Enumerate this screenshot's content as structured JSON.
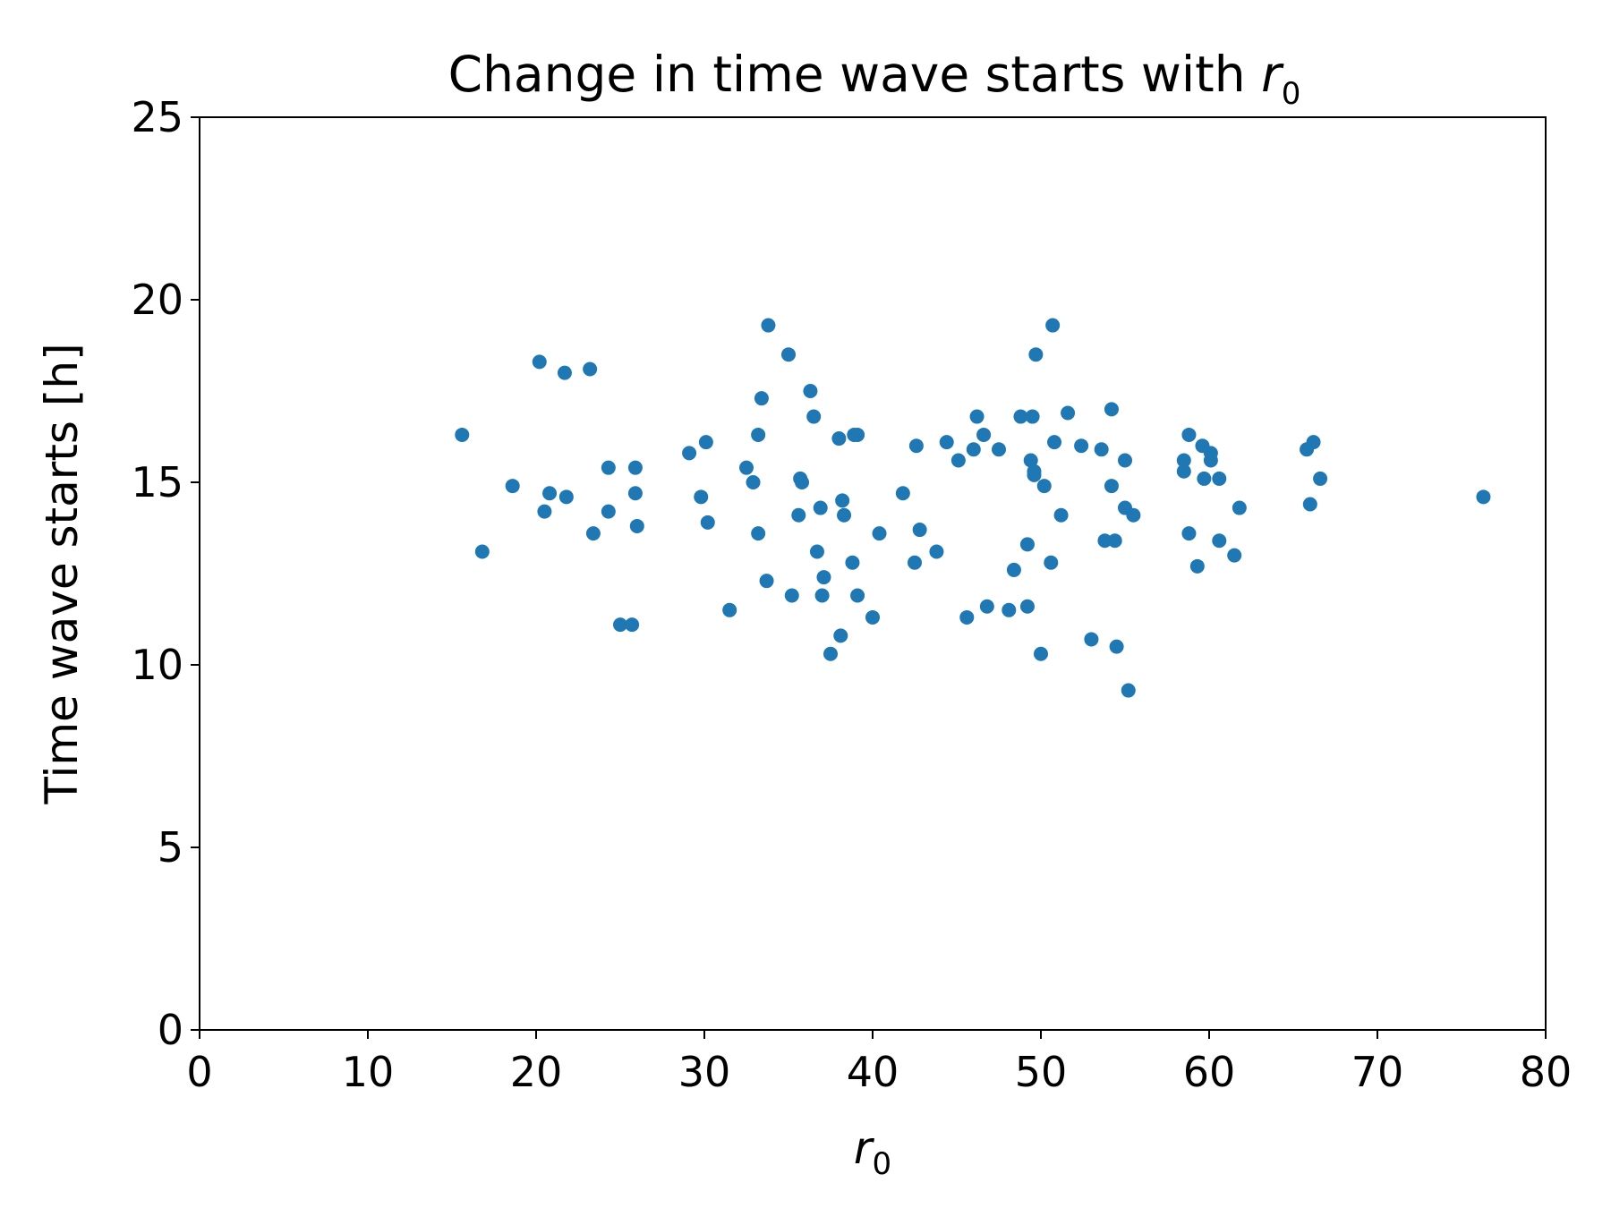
{
  "chart_data": {
    "type": "scatter",
    "title": "Change in time wave starts with ",
    "title_symbol": "r",
    "title_subscript": "0",
    "xlabel_symbol": "r",
    "xlabel_subscript": "0",
    "ylabel": "Time wave starts [h]",
    "xlim": [
      0,
      80
    ],
    "ylim": [
      0,
      25
    ],
    "xticks": [
      "0",
      "10",
      "20",
      "30",
      "40",
      "50",
      "60",
      "70",
      "80"
    ],
    "yticks": [
      "0",
      "5",
      "10",
      "15",
      "20",
      "25"
    ],
    "grid": false,
    "color": "#1f77b4",
    "series": [
      {
        "x": [
          15.6,
          16.8,
          18.6,
          20.2,
          20.5,
          20.8,
          21.7,
          21.8,
          23.2,
          23.4,
          24.3,
          24.3,
          25.0,
          25.7,
          25.9,
          25.9,
          26.0,
          29.1,
          29.8,
          30.1,
          30.2,
          31.5,
          32.5,
          32.9,
          33.2,
          33.2,
          33.4,
          33.7,
          33.8,
          35.0,
          35.2,
          35.6,
          35.7,
          35.8,
          36.3,
          36.5,
          36.7,
          36.9,
          37.0,
          37.1,
          37.5,
          38.0,
          38.1,
          38.2,
          38.3,
          38.8,
          38.9,
          39.1,
          39.1,
          40.0,
          40.4,
          41.8,
          42.5,
          42.6,
          42.8,
          43.8,
          44.4,
          45.1,
          45.6,
          46.0,
          46.2,
          46.6,
          46.8,
          47.5,
          48.1,
          48.4,
          48.8,
          49.2,
          49.2,
          49.5,
          49.4,
          49.6,
          49.6,
          49.7,
          50.0,
          50.2,
          50.6,
          50.8,
          50.7,
          51.2,
          51.6,
          52.4,
          53.0,
          53.6,
          53.8,
          54.2,
          54.2,
          54.4,
          54.5,
          55.0,
          55.0,
          55.2,
          55.5,
          58.5,
          58.5,
          58.8,
          58.8,
          59.3,
          59.6,
          59.7,
          60.1,
          60.1,
          60.6,
          60.6,
          61.5,
          61.8,
          65.8,
          66.0,
          66.2,
          66.6,
          76.3
        ],
        "y": [
          16.3,
          13.1,
          14.9,
          18.3,
          14.2,
          14.7,
          18.0,
          14.6,
          18.1,
          13.6,
          14.2,
          15.4,
          11.1,
          11.1,
          15.4,
          14.7,
          13.8,
          15.8,
          14.6,
          16.1,
          13.9,
          11.5,
          15.4,
          15.0,
          16.3,
          13.6,
          17.3,
          12.3,
          19.3,
          18.5,
          11.9,
          14.1,
          15.1,
          15.0,
          17.5,
          16.8,
          13.1,
          14.3,
          11.9,
          12.4,
          10.3,
          16.2,
          10.8,
          14.5,
          14.1,
          12.8,
          16.3,
          16.3,
          11.9,
          11.3,
          13.6,
          14.7,
          12.8,
          16.0,
          13.7,
          13.1,
          16.1,
          15.6,
          11.3,
          15.9,
          16.8,
          16.3,
          11.6,
          15.9,
          11.5,
          12.6,
          16.8,
          13.3,
          11.6,
          16.8,
          15.6,
          15.3,
          15.2,
          18.5,
          10.3,
          14.9,
          12.8,
          16.1,
          19.3,
          14.1,
          16.9,
          16.0,
          10.7,
          15.9,
          13.4,
          17.0,
          14.9,
          13.4,
          10.5,
          15.6,
          14.3,
          9.3,
          14.1,
          15.6,
          15.3,
          13.6,
          16.3,
          12.7,
          16.0,
          15.1,
          15.8,
          15.6,
          15.1,
          13.4,
          13.0,
          14.3,
          15.9,
          14.4,
          16.1,
          15.1,
          14.6
        ]
      }
    ]
  }
}
